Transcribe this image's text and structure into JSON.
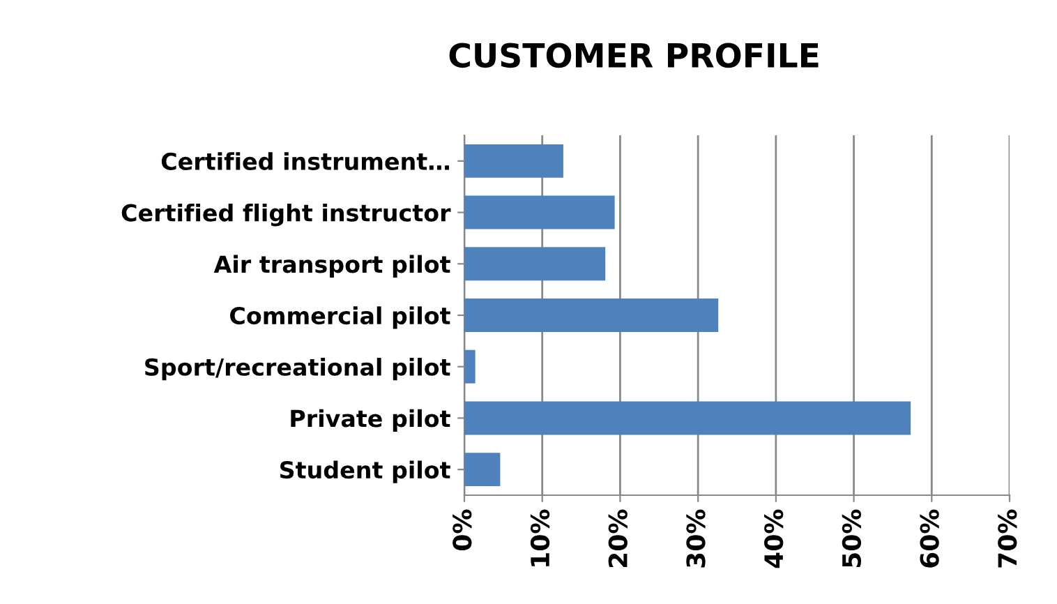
{
  "chart_data": {
    "type": "bar",
    "orientation": "horizontal",
    "title": "CUSTOMER PROFILE",
    "categories": [
      "Certified instrument…",
      "Certified flight instructor",
      "Air transport pilot",
      "Commercial pilot",
      "Sport/recreational pilot",
      "Private pilot",
      "Student pilot"
    ],
    "values": [
      12.7,
      19.3,
      18.1,
      32.6,
      1.4,
      57.3,
      4.6
    ],
    "color": "#4f81bd",
    "xlim": [
      0,
      70
    ],
    "xticks": [
      {
        "value": 0,
        "label": "0%"
      },
      {
        "value": 10,
        "label": "10%"
      },
      {
        "value": 20,
        "label": "20%"
      },
      {
        "value": 30,
        "label": "30%"
      },
      {
        "value": 40,
        "label": "40%"
      },
      {
        "value": 50,
        "label": "50%"
      },
      {
        "value": 60,
        "label": "60%"
      },
      {
        "value": 70,
        "label": "70%"
      }
    ],
    "grid": "x",
    "legend": false
  }
}
